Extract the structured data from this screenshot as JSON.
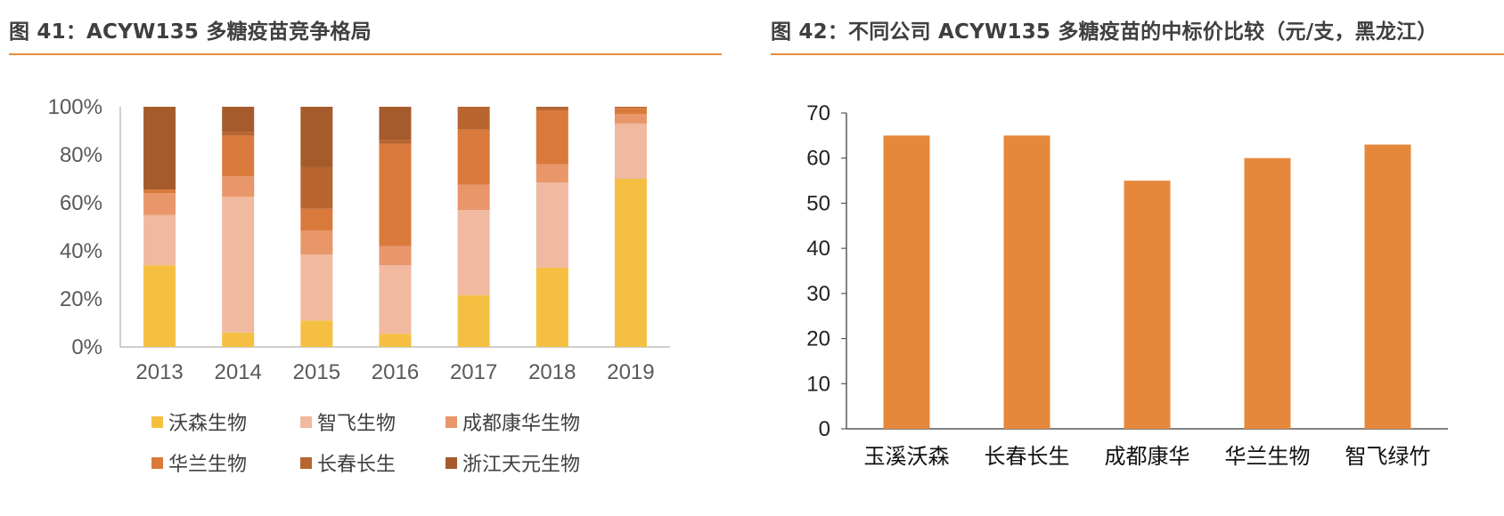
{
  "colors": {
    "accent": "#e58c3a",
    "title": "#3f3f3f",
    "axis": "#bfbfbf",
    "bar_right": "#e6883c"
  },
  "left_figure": {
    "title": "图 41：ACYW135 多糖疫苗竞争格局",
    "chart_data": {
      "type": "bar",
      "stacked": true,
      "categories": [
        "2013",
        "2014",
        "2015",
        "2016",
        "2017",
        "2018",
        "2019"
      ],
      "y_tick_labels": [
        "0%",
        "20%",
        "40%",
        "60%",
        "80%",
        "100%"
      ],
      "ylim": [
        0,
        100
      ],
      "series": [
        {
          "name": "沃森生物",
          "color": "#f5c042",
          "values": [
            34,
            6,
            11,
            5.5,
            21.5,
            33,
            70
          ]
        },
        {
          "name": "智飞生物",
          "color": "#f1b9a0",
          "values": [
            21,
            56.5,
            27.5,
            28.5,
            35.5,
            35.5,
            23
          ]
        },
        {
          "name": "成都康华生物",
          "color": "#e8966a",
          "values": [
            9,
            8.5,
            10,
            8,
            10.5,
            7.5,
            4
          ]
        },
        {
          "name": "华兰生物",
          "color": "#d97a3c",
          "values": [
            1.5,
            17,
            9,
            42.5,
            23,
            22.5,
            2.5
          ]
        },
        {
          "name": "长春长生",
          "color": "#b8652f",
          "values": [
            0,
            1.5,
            17.5,
            1.5,
            9.5,
            1,
            0.5
          ]
        },
        {
          "name": "浙江天元生物",
          "color": "#a65b2c",
          "values": [
            34.5,
            10.5,
            25,
            14,
            0,
            0.5,
            0
          ]
        }
      ],
      "legend_position": "bottom"
    }
  },
  "right_figure": {
    "title": "图 42：不同公司 ACYW135 多糖疫苗的中标价比较（元/支，黑龙江）",
    "chart_data": {
      "type": "bar",
      "categories": [
        "玉溪沃森",
        "长春长生",
        "成都康华",
        "华兰生物",
        "智飞绿竹"
      ],
      "values": [
        65,
        65,
        55,
        60,
        63
      ],
      "ylim": [
        0,
        70
      ],
      "y_ticks": [
        0,
        10,
        20,
        30,
        40,
        50,
        60,
        70
      ],
      "color": "#e6883c"
    }
  }
}
